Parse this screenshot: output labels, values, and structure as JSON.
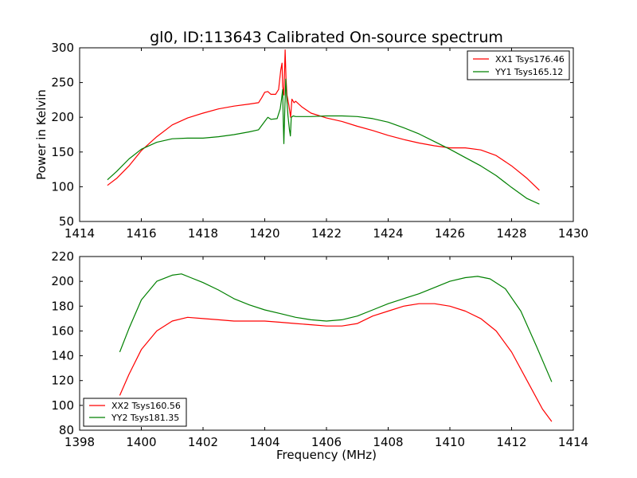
{
  "chart_data": [
    {
      "type": "line",
      "title": "gl0, ID:113643 Calibrated On-source spectrum",
      "xlabel": "",
      "ylabel": "Power in Kelvin",
      "xlim": [
        1414,
        1430
      ],
      "ylim": [
        50,
        300
      ],
      "xticks": [
        1414,
        1416,
        1418,
        1420,
        1422,
        1424,
        1426,
        1428,
        1430
      ],
      "yticks": [
        50,
        100,
        150,
        200,
        250,
        300
      ],
      "legend_position": "top-right",
      "grid": false,
      "series": [
        {
          "name": "XX1 Tsys176.46",
          "color": "#ff0000",
          "points": [
            [
              1414.9,
              102
            ],
            [
              1415.2,
              112
            ],
            [
              1415.6,
              130
            ],
            [
              1416.0,
              152
            ],
            [
              1416.5,
              172
            ],
            [
              1417.0,
              189
            ],
            [
              1417.5,
              199
            ],
            [
              1418.0,
              206
            ],
            [
              1418.5,
              212
            ],
            [
              1419.0,
              216
            ],
            [
              1419.5,
              219
            ],
            [
              1419.8,
              221
            ],
            [
              1419.9,
              228
            ],
            [
              1420.0,
              236
            ],
            [
              1420.1,
              237
            ],
            [
              1420.2,
              233
            ],
            [
              1420.35,
              233
            ],
            [
              1420.45,
              240
            ],
            [
              1420.52,
              268
            ],
            [
              1420.56,
              278
            ],
            [
              1420.58,
              244
            ],
            [
              1420.62,
              232
            ],
            [
              1420.66,
              297
            ],
            [
              1420.69,
              256
            ],
            [
              1420.72,
              232
            ],
            [
              1420.78,
              218
            ],
            [
              1420.84,
              200
            ],
            [
              1420.88,
              226
            ],
            [
              1420.95,
              221
            ],
            [
              1421.0,
              223
            ],
            [
              1421.2,
              215
            ],
            [
              1421.5,
              206
            ],
            [
              1422.0,
              199
            ],
            [
              1422.5,
              194
            ],
            [
              1423.0,
              187
            ],
            [
              1423.5,
              181
            ],
            [
              1424.0,
              174
            ],
            [
              1424.5,
              168
            ],
            [
              1425.0,
              163
            ],
            [
              1425.5,
              159
            ],
            [
              1426.0,
              156
            ],
            [
              1426.5,
              156
            ],
            [
              1427.0,
              153
            ],
            [
              1427.5,
              145
            ],
            [
              1428.0,
              130
            ],
            [
              1428.5,
              112
            ],
            [
              1428.9,
              95
            ]
          ]
        },
        {
          "name": "YY1 Tsys165.12",
          "color": "#008000",
          "points": [
            [
              1414.9,
              110
            ],
            [
              1415.2,
              122
            ],
            [
              1415.6,
              140
            ],
            [
              1416.0,
              154
            ],
            [
              1416.5,
              164
            ],
            [
              1417.0,
              169
            ],
            [
              1417.5,
              170
            ],
            [
              1418.0,
              170
            ],
            [
              1418.5,
              172
            ],
            [
              1419.0,
              175
            ],
            [
              1419.5,
              179
            ],
            [
              1419.8,
              182
            ],
            [
              1420.0,
              194
            ],
            [
              1420.1,
              200
            ],
            [
              1420.2,
              197
            ],
            [
              1420.4,
              198
            ],
            [
              1420.5,
              212
            ],
            [
              1420.55,
              228
            ],
            [
              1420.58,
              240
            ],
            [
              1420.6,
              196
            ],
            [
              1420.62,
              162
            ],
            [
              1420.65,
              212
            ],
            [
              1420.68,
              255
            ],
            [
              1420.71,
              230
            ],
            [
              1420.75,
              203
            ],
            [
              1420.8,
              182
            ],
            [
              1420.83,
              173
            ],
            [
              1420.86,
              200
            ],
            [
              1420.92,
              202
            ],
            [
              1421.0,
              201
            ],
            [
              1421.5,
              201
            ],
            [
              1422.0,
              202
            ],
            [
              1422.5,
              202
            ],
            [
              1423.0,
              201
            ],
            [
              1423.5,
              198
            ],
            [
              1424.0,
              193
            ],
            [
              1424.5,
              185
            ],
            [
              1425.0,
              176
            ],
            [
              1425.5,
              165
            ],
            [
              1426.0,
              154
            ],
            [
              1426.5,
              142
            ],
            [
              1427.0,
              130
            ],
            [
              1427.5,
              116
            ],
            [
              1428.0,
              99
            ],
            [
              1428.5,
              83
            ],
            [
              1428.9,
              75
            ]
          ]
        }
      ]
    },
    {
      "type": "line",
      "title": "",
      "xlabel": "Frequency (MHz)",
      "ylabel": "",
      "xlim": [
        1398,
        1414
      ],
      "ylim": [
        80,
        220
      ],
      "xticks": [
        1398,
        1400,
        1402,
        1404,
        1406,
        1408,
        1410,
        1412,
        1414
      ],
      "yticks": [
        80,
        100,
        120,
        140,
        160,
        180,
        200,
        220
      ],
      "legend_position": "bottom-left",
      "grid": false,
      "series": [
        {
          "name": "XX2 Tsys160.56",
          "color": "#ff0000",
          "points": [
            [
              1399.3,
              108
            ],
            [
              1399.6,
              125
            ],
            [
              1400.0,
              145
            ],
            [
              1400.5,
              160
            ],
            [
              1401.0,
              168
            ],
            [
              1401.5,
              171
            ],
            [
              1402.0,
              170
            ],
            [
              1402.5,
              169
            ],
            [
              1403.0,
              168
            ],
            [
              1403.5,
              168
            ],
            [
              1404.0,
              168
            ],
            [
              1404.5,
              167
            ],
            [
              1405.0,
              166
            ],
            [
              1405.5,
              165
            ],
            [
              1406.0,
              164
            ],
            [
              1406.5,
              164
            ],
            [
              1407.0,
              166
            ],
            [
              1407.5,
              172
            ],
            [
              1408.0,
              176
            ],
            [
              1408.5,
              180
            ],
            [
              1409.0,
              182
            ],
            [
              1409.5,
              182
            ],
            [
              1410.0,
              180
            ],
            [
              1410.5,
              176
            ],
            [
              1411.0,
              170
            ],
            [
              1411.5,
              160
            ],
            [
              1412.0,
              143
            ],
            [
              1412.5,
              120
            ],
            [
              1413.0,
              97
            ],
            [
              1413.3,
              87
            ]
          ]
        },
        {
          "name": "YY2 Tsys181.35",
          "color": "#008000",
          "points": [
            [
              1399.3,
              143
            ],
            [
              1399.6,
              162
            ],
            [
              1400.0,
              185
            ],
            [
              1400.5,
              200
            ],
            [
              1401.0,
              205
            ],
            [
              1401.3,
              206
            ],
            [
              1401.6,
              203
            ],
            [
              1402.0,
              199
            ],
            [
              1402.5,
              193
            ],
            [
              1403.0,
              186
            ],
            [
              1403.5,
              181
            ],
            [
              1404.0,
              177
            ],
            [
              1404.5,
              174
            ],
            [
              1405.0,
              171
            ],
            [
              1405.5,
              169
            ],
            [
              1406.0,
              168
            ],
            [
              1406.5,
              169
            ],
            [
              1407.0,
              172
            ],
            [
              1407.5,
              177
            ],
            [
              1408.0,
              182
            ],
            [
              1408.5,
              186
            ],
            [
              1409.0,
              190
            ],
            [
              1409.5,
              195
            ],
            [
              1410.0,
              200
            ],
            [
              1410.5,
              203
            ],
            [
              1410.9,
              204
            ],
            [
              1411.3,
              202
            ],
            [
              1411.8,
              194
            ],
            [
              1412.3,
              176
            ],
            [
              1412.8,
              148
            ],
            [
              1413.3,
              119
            ]
          ]
        }
      ]
    }
  ]
}
